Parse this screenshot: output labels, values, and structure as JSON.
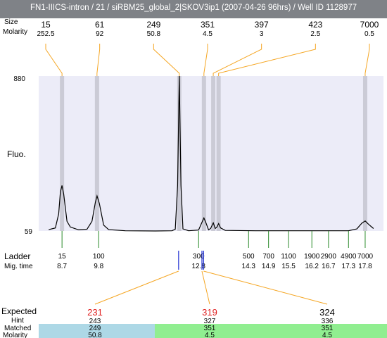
{
  "title": "FN1-IIICS-intron / 21 / siRBM25_global_2|SKOV3ip1 (2007-04-26 96hrs) / Well ID 1128977",
  "labels": {
    "peak_size": "Size",
    "peak_molarity": "Molarity",
    "y_axis": "Fluo.",
    "ladder": "Ladder",
    "mig_time": "Mig. time",
    "expected": "Expected",
    "hint": "Hint",
    "matched": "Matched",
    "molarity": "Molarity"
  },
  "colors": {
    "plot_bg": "#ececf8",
    "band": "#cbcbd6",
    "peak_line": "#f5a623",
    "ladder_tick": "#2a8a2a",
    "expected_tick": "#1f2ed0",
    "expected_text": "#e02020",
    "matched_blue": "#add8e6",
    "matched_green": "#90ee90",
    "trace": "#000000"
  },
  "chart_data": {
    "type": "line",
    "y_ticks": [
      "880",
      "59"
    ],
    "ylim": [
      59,
      880
    ],
    "peaks": [
      {
        "size": "15",
        "molarity": "252.5",
        "mig_time": 8.7
      },
      {
        "size": "61",
        "molarity": "92",
        "mig_time": 9.75
      },
      {
        "size": "249",
        "molarity": "50.8",
        "mig_time": 12.22
      },
      {
        "size": "351",
        "molarity": "4.5",
        "mig_time": 12.96
      },
      {
        "size": "397",
        "molarity": "3",
        "mig_time": 13.24
      },
      {
        "size": "423",
        "molarity": "2.5",
        "mig_time": 13.4
      },
      {
        "size": "7000",
        "molarity": "0.5",
        "mig_time": 17.8
      }
    ],
    "trace": [
      [
        8.3,
        66
      ],
      [
        8.5,
        75
      ],
      [
        8.6,
        150
      ],
      [
        8.65,
        265
      ],
      [
        8.7,
        300
      ],
      [
        8.75,
        255
      ],
      [
        8.85,
        110
      ],
      [
        8.95,
        80
      ],
      [
        9.2,
        65
      ],
      [
        9.45,
        68
      ],
      [
        9.6,
        110
      ],
      [
        9.7,
        210
      ],
      [
        9.75,
        245
      ],
      [
        9.82,
        205
      ],
      [
        9.95,
        90
      ],
      [
        10.1,
        66
      ],
      [
        10.6,
        60
      ],
      [
        11.5,
        59
      ],
      [
        12.0,
        60
      ],
      [
        12.1,
        68
      ],
      [
        12.17,
        300
      ],
      [
        12.22,
        880
      ],
      [
        12.27,
        300
      ],
      [
        12.33,
        70
      ],
      [
        12.5,
        60
      ],
      [
        12.8,
        64
      ],
      [
        12.9,
        105
      ],
      [
        12.96,
        128
      ],
      [
        13.02,
        102
      ],
      [
        13.1,
        65
      ],
      [
        13.16,
        72
      ],
      [
        13.24,
        102
      ],
      [
        13.3,
        72
      ],
      [
        13.35,
        80
      ],
      [
        13.4,
        98
      ],
      [
        13.46,
        75
      ],
      [
        13.6,
        62
      ],
      [
        14.5,
        60
      ],
      [
        16.5,
        60
      ],
      [
        17.3,
        60
      ],
      [
        17.55,
        70
      ],
      [
        17.7,
        100
      ],
      [
        17.8,
        112
      ],
      [
        17.9,
        95
      ],
      [
        18.05,
        72
      ]
    ],
    "ladder": [
      {
        "size": "15",
        "mig_time": "8.7"
      },
      {
        "size": "100",
        "mig_time": "9.8"
      },
      {
        "size": "300",
        "mig_time": "12.8"
      },
      {
        "size": "500",
        "mig_time": "14.3"
      },
      {
        "size": "700",
        "mig_time": "14.9"
      },
      {
        "size": "1100",
        "mig_time": "15.5"
      },
      {
        "size": "1900",
        "mig_time": "16.2"
      },
      {
        "size": "2900",
        "mig_time": "16.7"
      },
      {
        "size": "4900",
        "mig_time": "17.3"
      },
      {
        "size": "7000",
        "mig_time": "17.8"
      }
    ],
    "expected": [
      {
        "expected": "231",
        "hint": "243",
        "matched": "249",
        "molarity": "50.8",
        "mig_time": 12.2,
        "highlight": true
      },
      {
        "expected": "319",
        "hint": "327",
        "matched": "351",
        "molarity": "4.5",
        "mig_time": 12.9,
        "highlight": true
      },
      {
        "expected": "324",
        "hint": "336",
        "matched": "351",
        "molarity": "4.5",
        "mig_time": 12.95,
        "highlight": false
      }
    ]
  }
}
